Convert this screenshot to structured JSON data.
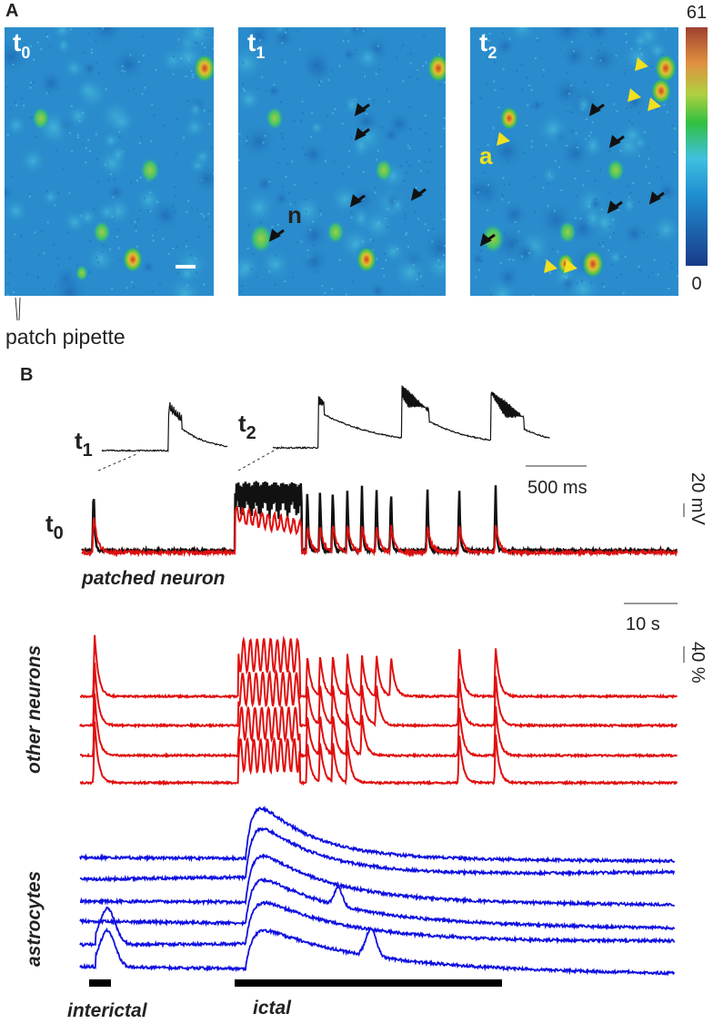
{
  "panel_a": {
    "label": "A",
    "images": [
      {
        "time": {
          "base": "t",
          "sub": "0"
        }
      },
      {
        "time": {
          "base": "t",
          "sub": "1"
        },
        "neuron_marker": "n"
      },
      {
        "time": {
          "base": "t",
          "sub": "2"
        },
        "astrocyte_marker": "a"
      }
    ],
    "colorbar": {
      "max": 61,
      "min": 0
    },
    "pipette_label": "patch pipette"
  },
  "panel_b": {
    "label": "B",
    "insets": [
      {
        "base": "t",
        "sub": "1"
      },
      {
        "base": "t",
        "sub": "2"
      }
    ],
    "inset_time_scale": "500 ms",
    "voltage_scale": "20 mV",
    "trace_time": {
      "base": "t",
      "sub": "0"
    },
    "patched_label": "patched neuron",
    "time_scale": "10 s",
    "fluorescence_scale": "40 %",
    "neurons_label": "other neurons",
    "astrocytes_label": "astrocytes",
    "interictal_label": "interictal",
    "ictal_label": "ictal"
  }
}
